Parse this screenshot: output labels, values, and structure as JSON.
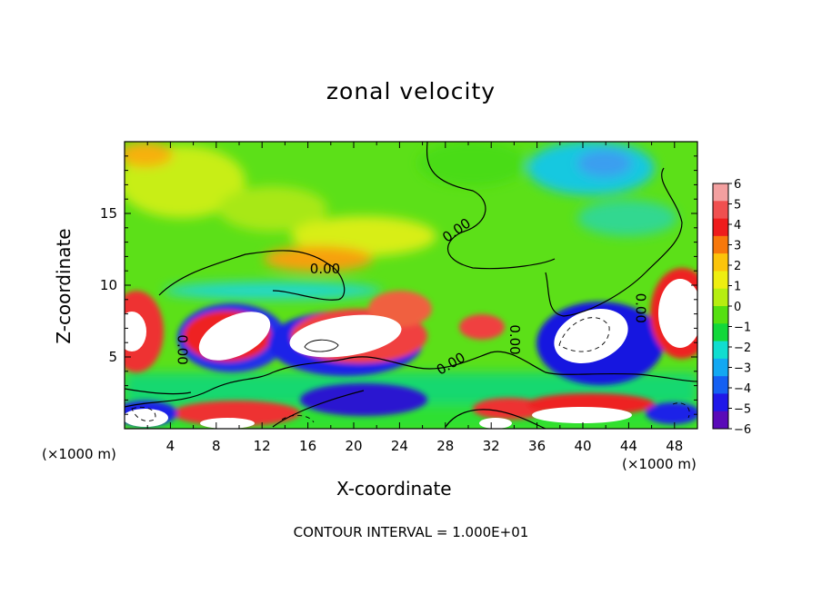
{
  "chart_data": {
    "type": "heatmap",
    "title": "zonal velocity",
    "xlabel": "X-coordinate",
    "ylabel": "Z-coordinate",
    "x_unit_left": "(×1000 m)",
    "x_unit_right": "(×1000 m)",
    "footer": "CONTOUR INTERVAL = 1.000E+01",
    "xlim": [
      0,
      50
    ],
    "ylim": [
      0,
      20
    ],
    "x_ticks": [
      4,
      8,
      12,
      16,
      20,
      24,
      28,
      32,
      36,
      40,
      44,
      48
    ],
    "y_ticks": [
      5,
      10,
      15
    ],
    "colorbar": {
      "ticks": [
        "6",
        "5",
        "4",
        "3",
        "2",
        "1",
        "0",
        "−1",
        "−2",
        "−3",
        "−4",
        "−5",
        "−6"
      ],
      "range": [
        -6,
        6
      ]
    },
    "contour_labels": [
      {
        "text": "0.00",
        "x": 17.5,
        "y": 11.1,
        "angle": 0
      },
      {
        "text": "0.00",
        "x": 29.0,
        "y": 13.8,
        "angle": -35
      },
      {
        "text": "0.00",
        "x": 28.5,
        "y": 4.5,
        "angle": -30
      },
      {
        "text": "0.00",
        "x": 5.0,
        "y": 5.5,
        "angle": 90
      },
      {
        "text": "0.00",
        "x": 34.0,
        "y": 6.2,
        "angle": 90
      },
      {
        "text": "0.00",
        "x": 45.0,
        "y": 8.4,
        "angle": 90
      }
    ]
  }
}
